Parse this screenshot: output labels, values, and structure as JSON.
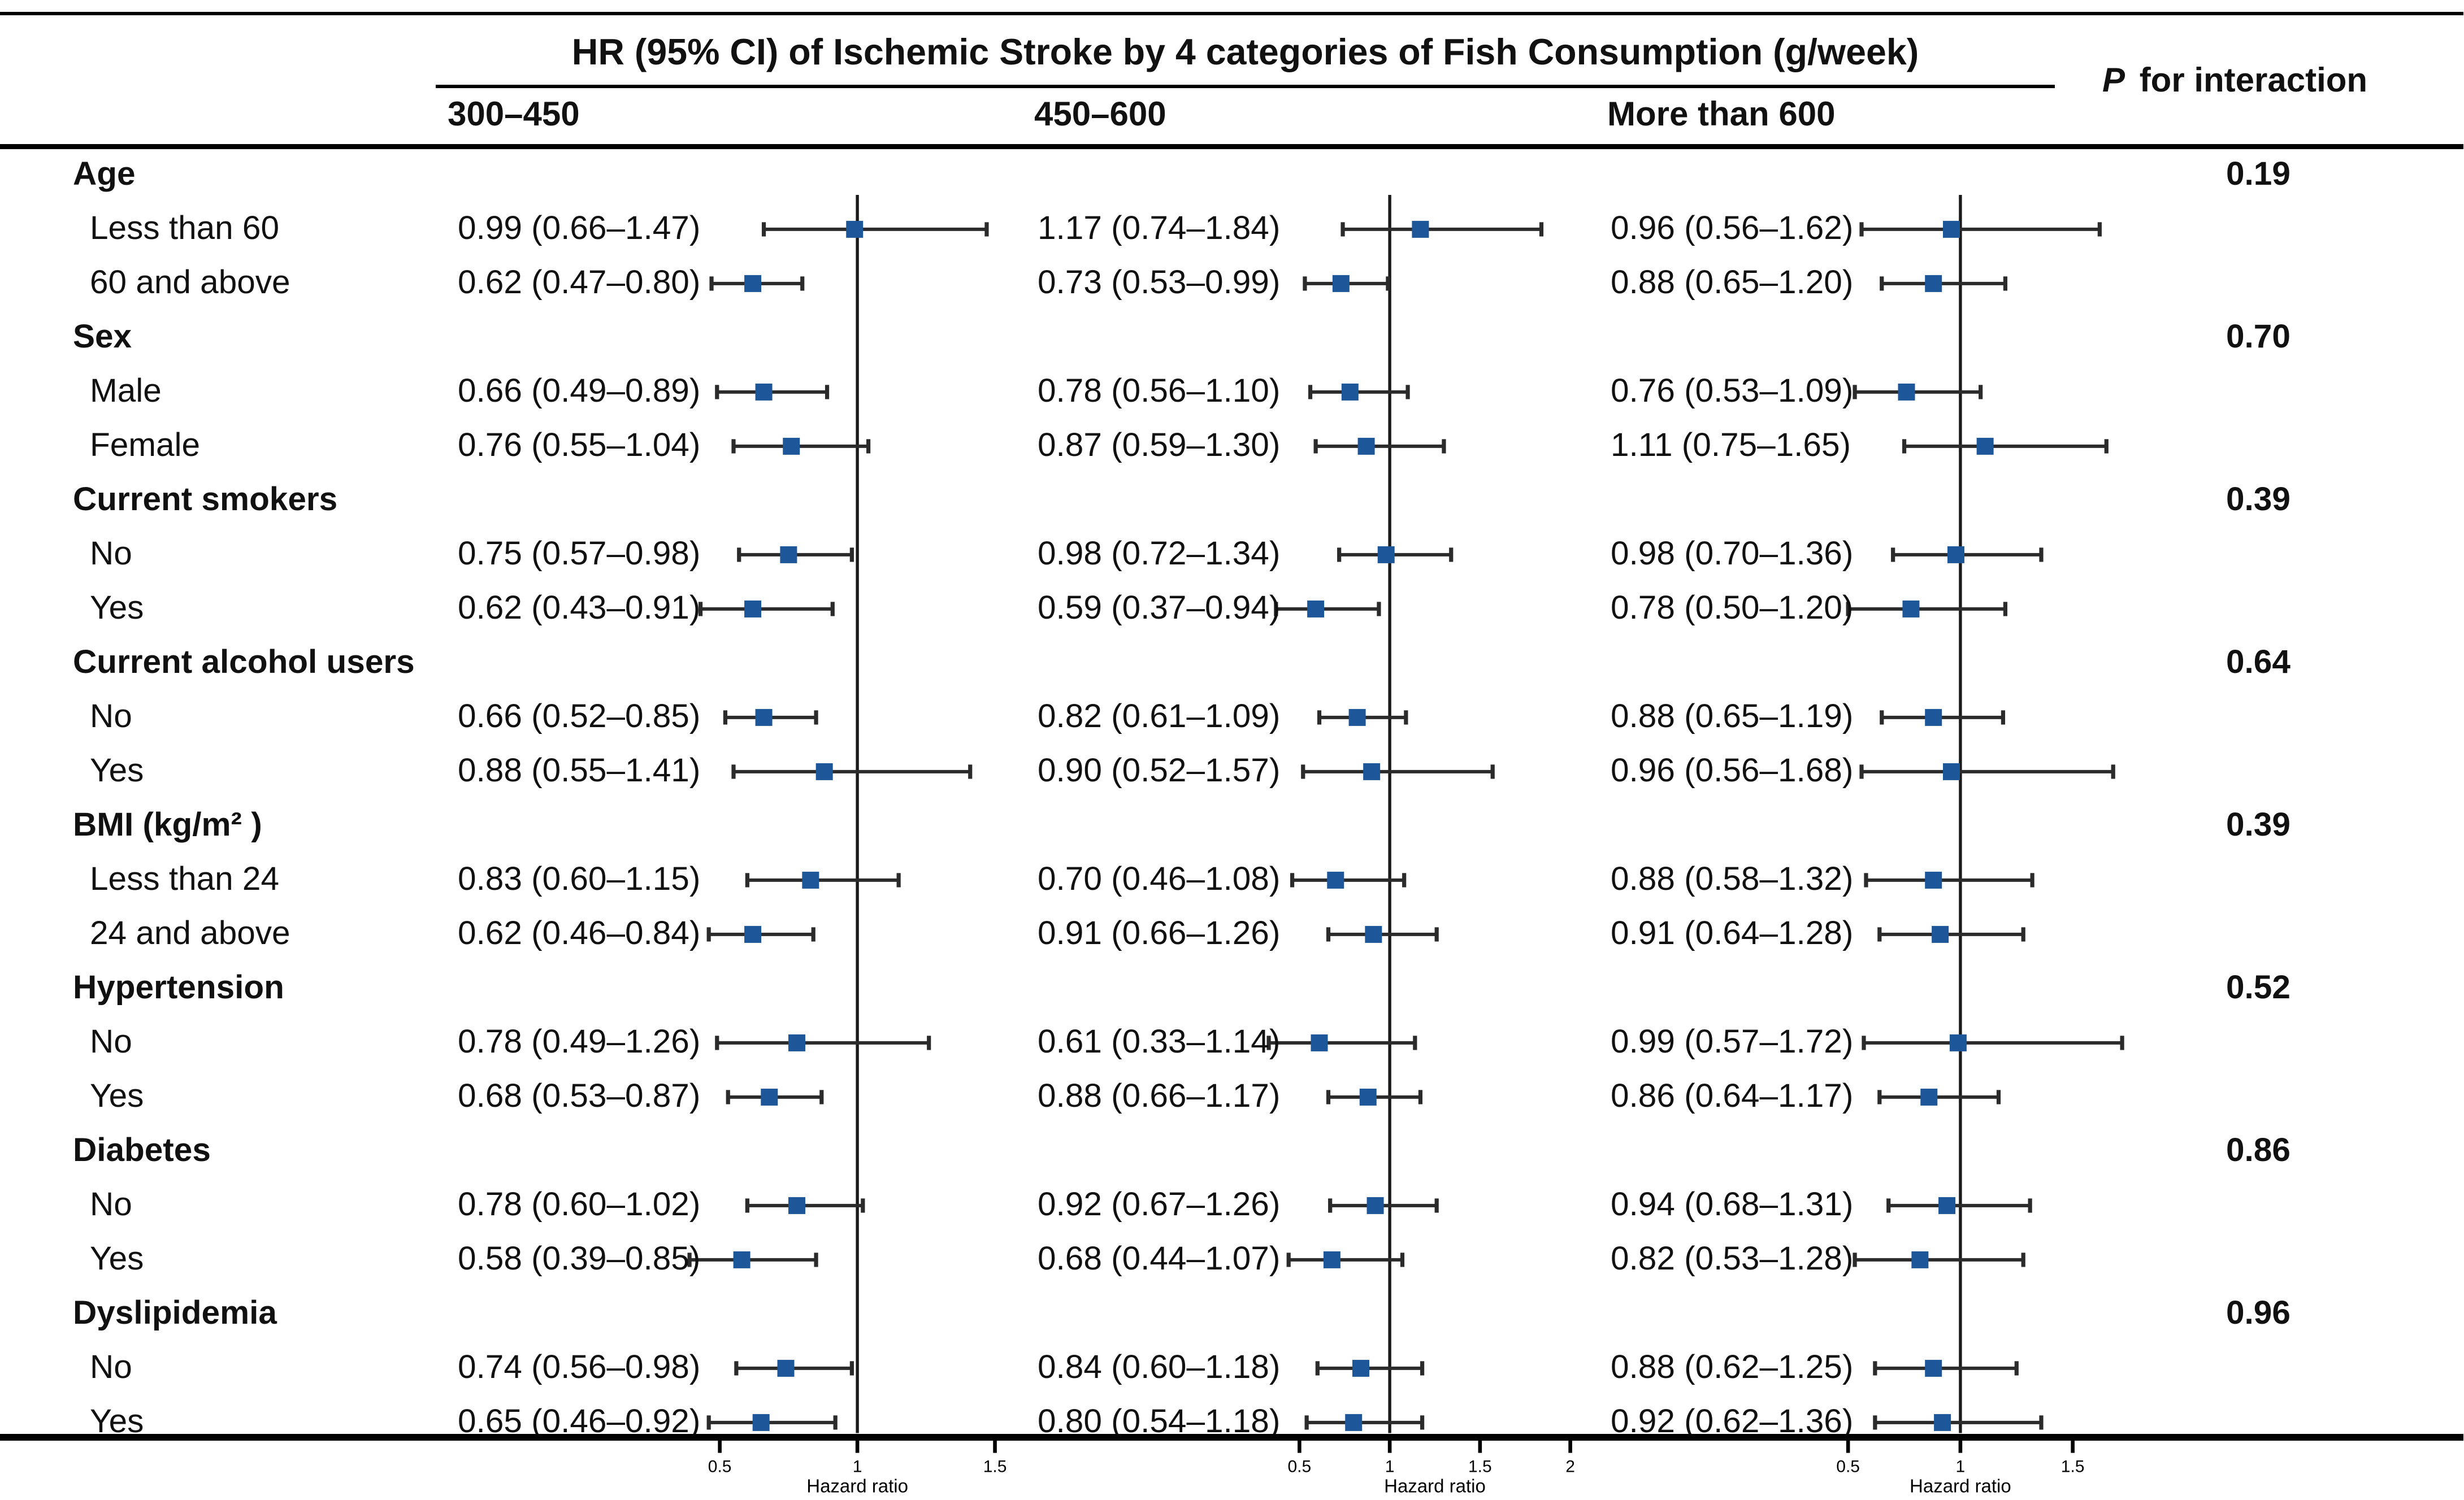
{
  "chart_data": {
    "type": "scatter",
    "subtype": "forest-plot",
    "title": "HR (95% CI) of Ischemic Stroke by 4 categories of Fish Consumption (g/week)",
    "xlabel": "Hazard ratio",
    "p_header_italic": "P",
    "p_header_rest": " for interaction",
    "marker_color": "#1E5799",
    "ci_line_color": "#2b2b2b",
    "legend": "none",
    "grid": false,
    "columns": [
      {
        "label": "300–450",
        "ticks": [
          0.5,
          1,
          1.5
        ],
        "xlim": [
          0.3,
          1.65
        ]
      },
      {
        "label": "450–600",
        "ticks": [
          0.5,
          1,
          1.5,
          2
        ],
        "xlim": [
          0.28,
          2.15
        ]
      },
      {
        "label": "More than 600",
        "ticks": [
          0.5,
          1,
          1.5
        ],
        "xlim": [
          0.42,
          1.85
        ]
      }
    ],
    "groups": [
      {
        "label": "Age",
        "p": "0.19",
        "rows": [
          {
            "label": "Less than 60",
            "cells": [
              {
                "text": "0.99 (0.66–1.47)",
                "hr": 0.99,
                "lo": 0.66,
                "hi": 1.47
              },
              {
                "text": "1.17 (0.74–1.84)",
                "hr": 1.17,
                "lo": 0.74,
                "hi": 1.84
              },
              {
                "text": "0.96 (0.56–1.62)",
                "hr": 0.96,
                "lo": 0.56,
                "hi": 1.62
              }
            ]
          },
          {
            "label": "60 and above",
            "cells": [
              {
                "text": "0.62 (0.47–0.80)",
                "hr": 0.62,
                "lo": 0.47,
                "hi": 0.8
              },
              {
                "text": "0.73 (0.53–0.99)",
                "hr": 0.73,
                "lo": 0.53,
                "hi": 0.99
              },
              {
                "text": "0.88 (0.65–1.20)",
                "hr": 0.88,
                "lo": 0.65,
                "hi": 1.2
              }
            ]
          }
        ]
      },
      {
        "label": "Sex",
        "p": "0.70",
        "rows": [
          {
            "label": "Male",
            "cells": [
              {
                "text": "0.66 (0.49–0.89)",
                "hr": 0.66,
                "lo": 0.49,
                "hi": 0.89
              },
              {
                "text": "0.78 (0.56–1.10)",
                "hr": 0.78,
                "lo": 0.56,
                "hi": 1.1
              },
              {
                "text": "0.76 (0.53–1.09)",
                "hr": 0.76,
                "lo": 0.53,
                "hi": 1.09
              }
            ]
          },
          {
            "label": "Female",
            "cells": [
              {
                "text": "0.76 (0.55–1.04)",
                "hr": 0.76,
                "lo": 0.55,
                "hi": 1.04
              },
              {
                "text": "0.87 (0.59–1.30)",
                "hr": 0.87,
                "lo": 0.59,
                "hi": 1.3
              },
              {
                "text": "1.11 (0.75–1.65)",
                "hr": 1.11,
                "lo": 0.75,
                "hi": 1.65
              }
            ]
          }
        ]
      },
      {
        "label": "Current smokers",
        "p": "0.39",
        "rows": [
          {
            "label": "No",
            "cells": [
              {
                "text": "0.75 (0.57–0.98)",
                "hr": 0.75,
                "lo": 0.57,
                "hi": 0.98
              },
              {
                "text": "0.98 (0.72–1.34)",
                "hr": 0.98,
                "lo": 0.72,
                "hi": 1.34
              },
              {
                "text": "0.98 (0.70–1.36)",
                "hr": 0.98,
                "lo": 0.7,
                "hi": 1.36
              }
            ]
          },
          {
            "label": "Yes",
            "cells": [
              {
                "text": "0.62 (0.43–0.91)",
                "hr": 0.62,
                "lo": 0.43,
                "hi": 0.91
              },
              {
                "text": "0.59 (0.37–0.94)",
                "hr": 0.59,
                "lo": 0.37,
                "hi": 0.94
              },
              {
                "text": "0.78 (0.50–1.20)",
                "hr": 0.78,
                "lo": 0.5,
                "hi": 1.2
              }
            ]
          }
        ]
      },
      {
        "label": "Current alcohol users",
        "p": "0.64",
        "rows": [
          {
            "label": "No",
            "cells": [
              {
                "text": "0.66 (0.52–0.85)",
                "hr": 0.66,
                "lo": 0.52,
                "hi": 0.85
              },
              {
                "text": "0.82 (0.61–1.09)",
                "hr": 0.82,
                "lo": 0.61,
                "hi": 1.09
              },
              {
                "text": "0.88 (0.65–1.19)",
                "hr": 0.88,
                "lo": 0.65,
                "hi": 1.19
              }
            ]
          },
          {
            "label": "Yes",
            "cells": [
              {
                "text": "0.88 (0.55–1.41)",
                "hr": 0.88,
                "lo": 0.55,
                "hi": 1.41
              },
              {
                "text": "0.90 (0.52–1.57)",
                "hr": 0.9,
                "lo": 0.52,
                "hi": 1.57
              },
              {
                "text": "0.96 (0.56–1.68)",
                "hr": 0.96,
                "lo": 0.56,
                "hi": 1.68
              }
            ]
          }
        ]
      },
      {
        "label": "BMI (kg/m² )",
        "p": "0.39",
        "rows": [
          {
            "label": "Less than 24",
            "cells": [
              {
                "text": "0.83 (0.60–1.15)",
                "hr": 0.83,
                "lo": 0.6,
                "hi": 1.15
              },
              {
                "text": "0.70 (0.46–1.08)",
                "hr": 0.7,
                "lo": 0.46,
                "hi": 1.08
              },
              {
                "text": "0.88 (0.58–1.32)",
                "hr": 0.88,
                "lo": 0.58,
                "hi": 1.32
              }
            ]
          },
          {
            "label": "24 and above",
            "cells": [
              {
                "text": "0.62 (0.46–0.84)",
                "hr": 0.62,
                "lo": 0.46,
                "hi": 0.84
              },
              {
                "text": "0.91 (0.66–1.26)",
                "hr": 0.91,
                "lo": 0.66,
                "hi": 1.26
              },
              {
                "text": "0.91 (0.64–1.28)",
                "hr": 0.91,
                "lo": 0.64,
                "hi": 1.28
              }
            ]
          }
        ]
      },
      {
        "label": "Hypertension",
        "p": "0.52",
        "rows": [
          {
            "label": "No",
            "cells": [
              {
                "text": "0.78 (0.49–1.26)",
                "hr": 0.78,
                "lo": 0.49,
                "hi": 1.26
              },
              {
                "text": "0.61 (0.33–1.14)",
                "hr": 0.61,
                "lo": 0.33,
                "hi": 1.14
              },
              {
                "text": "0.99 (0.57–1.72)",
                "hr": 0.99,
                "lo": 0.57,
                "hi": 1.72
              }
            ]
          },
          {
            "label": "Yes",
            "cells": [
              {
                "text": "0.68 (0.53–0.87)",
                "hr": 0.68,
                "lo": 0.53,
                "hi": 0.87
              },
              {
                "text": "0.88 (0.66–1.17)",
                "hr": 0.88,
                "lo": 0.66,
                "hi": 1.17
              },
              {
                "text": "0.86 (0.64–1.17)",
                "hr": 0.86,
                "lo": 0.64,
                "hi": 1.17
              }
            ]
          }
        ]
      },
      {
        "label": "Diabetes",
        "p": "0.86",
        "rows": [
          {
            "label": "No",
            "cells": [
              {
                "text": "0.78 (0.60–1.02)",
                "hr": 0.78,
                "lo": 0.6,
                "hi": 1.02
              },
              {
                "text": "0.92 (0.67–1.26)",
                "hr": 0.92,
                "lo": 0.67,
                "hi": 1.26
              },
              {
                "text": "0.94 (0.68–1.31)",
                "hr": 0.94,
                "lo": 0.68,
                "hi": 1.31
              }
            ]
          },
          {
            "label": "Yes",
            "cells": [
              {
                "text": "0.58 (0.39–0.85)",
                "hr": 0.58,
                "lo": 0.39,
                "hi": 0.85
              },
              {
                "text": "0.68 (0.44–1.07)",
                "hr": 0.68,
                "lo": 0.44,
                "hi": 1.07
              },
              {
                "text": "0.82 (0.53–1.28)",
                "hr": 0.82,
                "lo": 0.53,
                "hi": 1.28
              }
            ]
          }
        ]
      },
      {
        "label": "Dyslipidemia",
        "p": "0.96",
        "rows": [
          {
            "label": "No",
            "cells": [
              {
                "text": "0.74 (0.56–0.98)",
                "hr": 0.74,
                "lo": 0.56,
                "hi": 0.98
              },
              {
                "text": "0.84 (0.60–1.18)",
                "hr": 0.84,
                "lo": 0.6,
                "hi": 1.18
              },
              {
                "text": "0.88 (0.62–1.25)",
                "hr": 0.88,
                "lo": 0.62,
                "hi": 1.25
              }
            ]
          },
          {
            "label": "Yes",
            "cells": [
              {
                "text": "0.65 (0.46–0.92)",
                "hr": 0.65,
                "lo": 0.46,
                "hi": 0.92
              },
              {
                "text": "0.80 (0.54–1.18)",
                "hr": 0.8,
                "lo": 0.54,
                "hi": 1.18
              },
              {
                "text": "0.92 (0.62–1.36)",
                "hr": 0.92,
                "lo": 0.62,
                "hi": 1.36
              }
            ]
          }
        ]
      }
    ]
  }
}
